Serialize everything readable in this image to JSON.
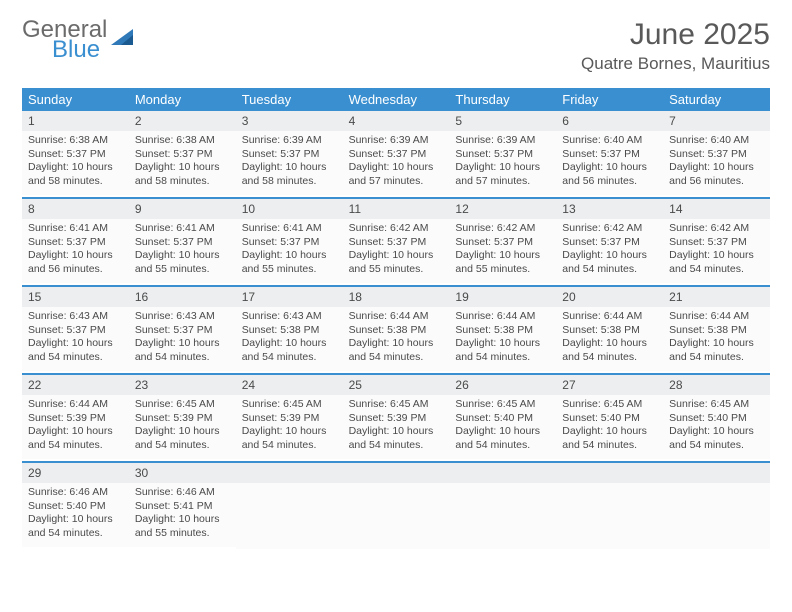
{
  "logo": {
    "text1": "General",
    "text2": "Blue"
  },
  "title": "June 2025",
  "subtitle": "Quatre Bornes, Mauritius",
  "colors": {
    "header_bg": "#3a8fd0",
    "header_text": "#ffffff",
    "daynum_bg": "#eceeef",
    "body_bg": "#fbfbfb",
    "border": "#3a8fd0",
    "text": "#4a4a4a"
  },
  "fontsize": {
    "title": 30,
    "subtitle": 17,
    "dayname": 13,
    "daynum": 12,
    "body": 10.5
  },
  "daynames": [
    "Sunday",
    "Monday",
    "Tuesday",
    "Wednesday",
    "Thursday",
    "Friday",
    "Saturday"
  ],
  "weeks": [
    [
      {
        "n": "1",
        "sunrise": "Sunrise: 6:38 AM",
        "sunset": "Sunset: 5:37 PM",
        "daylight": "Daylight: 10 hours and 58 minutes."
      },
      {
        "n": "2",
        "sunrise": "Sunrise: 6:38 AM",
        "sunset": "Sunset: 5:37 PM",
        "daylight": "Daylight: 10 hours and 58 minutes."
      },
      {
        "n": "3",
        "sunrise": "Sunrise: 6:39 AM",
        "sunset": "Sunset: 5:37 PM",
        "daylight": "Daylight: 10 hours and 58 minutes."
      },
      {
        "n": "4",
        "sunrise": "Sunrise: 6:39 AM",
        "sunset": "Sunset: 5:37 PM",
        "daylight": "Daylight: 10 hours and 57 minutes."
      },
      {
        "n": "5",
        "sunrise": "Sunrise: 6:39 AM",
        "sunset": "Sunset: 5:37 PM",
        "daylight": "Daylight: 10 hours and 57 minutes."
      },
      {
        "n": "6",
        "sunrise": "Sunrise: 6:40 AM",
        "sunset": "Sunset: 5:37 PM",
        "daylight": "Daylight: 10 hours and 56 minutes."
      },
      {
        "n": "7",
        "sunrise": "Sunrise: 6:40 AM",
        "sunset": "Sunset: 5:37 PM",
        "daylight": "Daylight: 10 hours and 56 minutes."
      }
    ],
    [
      {
        "n": "8",
        "sunrise": "Sunrise: 6:41 AM",
        "sunset": "Sunset: 5:37 PM",
        "daylight": "Daylight: 10 hours and 56 minutes."
      },
      {
        "n": "9",
        "sunrise": "Sunrise: 6:41 AM",
        "sunset": "Sunset: 5:37 PM",
        "daylight": "Daylight: 10 hours and 55 minutes."
      },
      {
        "n": "10",
        "sunrise": "Sunrise: 6:41 AM",
        "sunset": "Sunset: 5:37 PM",
        "daylight": "Daylight: 10 hours and 55 minutes."
      },
      {
        "n": "11",
        "sunrise": "Sunrise: 6:42 AM",
        "sunset": "Sunset: 5:37 PM",
        "daylight": "Daylight: 10 hours and 55 minutes."
      },
      {
        "n": "12",
        "sunrise": "Sunrise: 6:42 AM",
        "sunset": "Sunset: 5:37 PM",
        "daylight": "Daylight: 10 hours and 55 minutes."
      },
      {
        "n": "13",
        "sunrise": "Sunrise: 6:42 AM",
        "sunset": "Sunset: 5:37 PM",
        "daylight": "Daylight: 10 hours and 54 minutes."
      },
      {
        "n": "14",
        "sunrise": "Sunrise: 6:42 AM",
        "sunset": "Sunset: 5:37 PM",
        "daylight": "Daylight: 10 hours and 54 minutes."
      }
    ],
    [
      {
        "n": "15",
        "sunrise": "Sunrise: 6:43 AM",
        "sunset": "Sunset: 5:37 PM",
        "daylight": "Daylight: 10 hours and 54 minutes."
      },
      {
        "n": "16",
        "sunrise": "Sunrise: 6:43 AM",
        "sunset": "Sunset: 5:37 PM",
        "daylight": "Daylight: 10 hours and 54 minutes."
      },
      {
        "n": "17",
        "sunrise": "Sunrise: 6:43 AM",
        "sunset": "Sunset: 5:38 PM",
        "daylight": "Daylight: 10 hours and 54 minutes."
      },
      {
        "n": "18",
        "sunrise": "Sunrise: 6:44 AM",
        "sunset": "Sunset: 5:38 PM",
        "daylight": "Daylight: 10 hours and 54 minutes."
      },
      {
        "n": "19",
        "sunrise": "Sunrise: 6:44 AM",
        "sunset": "Sunset: 5:38 PM",
        "daylight": "Daylight: 10 hours and 54 minutes."
      },
      {
        "n": "20",
        "sunrise": "Sunrise: 6:44 AM",
        "sunset": "Sunset: 5:38 PM",
        "daylight": "Daylight: 10 hours and 54 minutes."
      },
      {
        "n": "21",
        "sunrise": "Sunrise: 6:44 AM",
        "sunset": "Sunset: 5:38 PM",
        "daylight": "Daylight: 10 hours and 54 minutes."
      }
    ],
    [
      {
        "n": "22",
        "sunrise": "Sunrise: 6:44 AM",
        "sunset": "Sunset: 5:39 PM",
        "daylight": "Daylight: 10 hours and 54 minutes."
      },
      {
        "n": "23",
        "sunrise": "Sunrise: 6:45 AM",
        "sunset": "Sunset: 5:39 PM",
        "daylight": "Daylight: 10 hours and 54 minutes."
      },
      {
        "n": "24",
        "sunrise": "Sunrise: 6:45 AM",
        "sunset": "Sunset: 5:39 PM",
        "daylight": "Daylight: 10 hours and 54 minutes."
      },
      {
        "n": "25",
        "sunrise": "Sunrise: 6:45 AM",
        "sunset": "Sunset: 5:39 PM",
        "daylight": "Daylight: 10 hours and 54 minutes."
      },
      {
        "n": "26",
        "sunrise": "Sunrise: 6:45 AM",
        "sunset": "Sunset: 5:40 PM",
        "daylight": "Daylight: 10 hours and 54 minutes."
      },
      {
        "n": "27",
        "sunrise": "Sunrise: 6:45 AM",
        "sunset": "Sunset: 5:40 PM",
        "daylight": "Daylight: 10 hours and 54 minutes."
      },
      {
        "n": "28",
        "sunrise": "Sunrise: 6:45 AM",
        "sunset": "Sunset: 5:40 PM",
        "daylight": "Daylight: 10 hours and 54 minutes."
      }
    ],
    [
      {
        "n": "29",
        "sunrise": "Sunrise: 6:46 AM",
        "sunset": "Sunset: 5:40 PM",
        "daylight": "Daylight: 10 hours and 54 minutes."
      },
      {
        "n": "30",
        "sunrise": "Sunrise: 6:46 AM",
        "sunset": "Sunset: 5:41 PM",
        "daylight": "Daylight: 10 hours and 55 minutes."
      },
      null,
      null,
      null,
      null,
      null
    ]
  ]
}
